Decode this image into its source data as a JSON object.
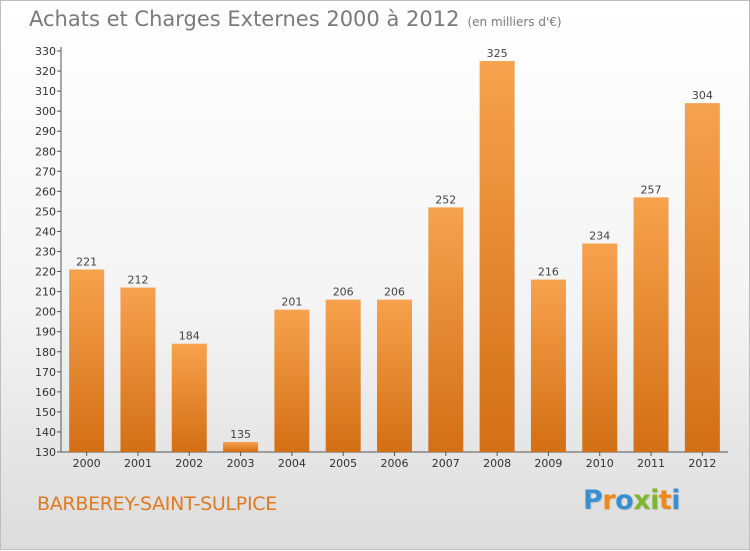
{
  "header": {
    "title": "Achats et Charges Externes 2000 à 2012",
    "subtitle": "(en milliers d'€)"
  },
  "footer": {
    "city": "BARBEREY-SAINT-SULPICE",
    "brand": "Proxiti"
  },
  "colors": {
    "bar_light": "#f7a24e",
    "bar_dark": "#d36f14",
    "title": "#7a7a7a",
    "city": "#e07a1f",
    "brand_letters": [
      "#3b8fd0",
      "#f0891a",
      "#3b8fd0",
      "#7fb62d",
      "#7fb62d",
      "#f0891a",
      "#3b8fd0"
    ]
  },
  "chart_data": {
    "type": "bar",
    "title": "Achats et Charges Externes 2000 à 2012",
    "subtitle": "(en milliers d'€)",
    "categories": [
      "2000",
      "2001",
      "2002",
      "2003",
      "2004",
      "2005",
      "2006",
      "2007",
      "2008",
      "2009",
      "2010",
      "2011",
      "2012"
    ],
    "values": [
      221,
      212,
      184,
      135,
      201,
      206,
      206,
      252,
      325,
      216,
      234,
      257,
      304
    ],
    "ylim": [
      130,
      330
    ],
    "ytick_step": 10,
    "grid": false,
    "data_labels": true
  }
}
